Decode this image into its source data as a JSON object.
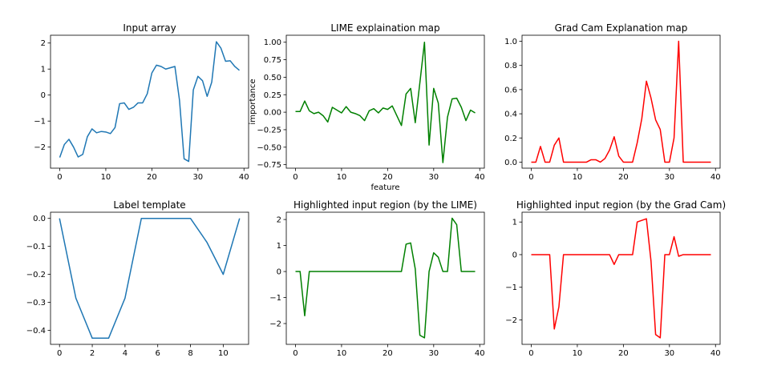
{
  "chart_data": [
    {
      "type": "line",
      "title": "Input array",
      "xlabel": "",
      "ylabel": "",
      "xlim": [
        -2,
        41
      ],
      "ylim": [
        -2.81,
        2.3
      ],
      "xticks": [
        0,
        10,
        20,
        30,
        40
      ],
      "yticks": [
        -2,
        -1,
        0,
        1,
        2
      ],
      "ytick_labels": [
        "−2",
        "−1",
        "0",
        "1",
        "2"
      ],
      "color": "#1f77b4",
      "series": [
        {
          "x": [
            0,
            1,
            2,
            3,
            4,
            5,
            6,
            7,
            8,
            9,
            10,
            11,
            12,
            13,
            14,
            15,
            16,
            17,
            18,
            19,
            20,
            21,
            22,
            23,
            24,
            25,
            26,
            27,
            28,
            29,
            30,
            31,
            32,
            33,
            34,
            35,
            36,
            37,
            38,
            39
          ],
          "values": [
            -2.4,
            -1.9,
            -1.7,
            -2.0,
            -2.38,
            -2.28,
            -1.6,
            -1.3,
            -1.45,
            -1.4,
            -1.42,
            -1.48,
            -1.25,
            -0.33,
            -0.3,
            -0.55,
            -0.47,
            -0.3,
            -0.3,
            0.05,
            0.85,
            1.15,
            1.1,
            1.0,
            1.05,
            1.1,
            -0.2,
            -2.45,
            -2.55,
            0.2,
            0.72,
            0.55,
            -0.05,
            0.5,
            2.05,
            1.8,
            1.3,
            1.32,
            1.1,
            0.95
          ]
        }
      ]
    },
    {
      "type": "line",
      "title": "LIME explaination map",
      "xlabel": "feature",
      "ylabel": "importance",
      "xlim": [
        -2,
        41
      ],
      "ylim": [
        -0.8,
        1.1
      ],
      "xticks": [
        0,
        10,
        20,
        30,
        40
      ],
      "yticks": [
        -0.75,
        -0.5,
        -0.25,
        0.0,
        0.25,
        0.5,
        0.75,
        1.0
      ],
      "ytick_labels": [
        "−0.75",
        "−0.50",
        "−0.25",
        "0.00",
        "0.25",
        "0.50",
        "0.75",
        "1.00"
      ],
      "color": "#008000",
      "series": [
        {
          "x": [
            0,
            1,
            2,
            3,
            4,
            5,
            6,
            7,
            8,
            9,
            10,
            11,
            12,
            13,
            14,
            15,
            16,
            17,
            18,
            19,
            20,
            21,
            22,
            23,
            24,
            25,
            26,
            27,
            28,
            29,
            30,
            31,
            32,
            33,
            34,
            35,
            36,
            37,
            38,
            39
          ],
          "values": [
            0.01,
            0.01,
            0.16,
            0.02,
            -0.02,
            0.0,
            -0.05,
            -0.14,
            0.07,
            0.03,
            -0.01,
            0.08,
            0.0,
            -0.02,
            -0.05,
            -0.12,
            0.02,
            0.05,
            -0.01,
            0.06,
            0.04,
            0.09,
            -0.05,
            -0.19,
            0.26,
            0.34,
            -0.15,
            0.42,
            1.0,
            -0.47,
            0.34,
            0.13,
            -0.72,
            -0.07,
            0.19,
            0.2,
            0.07,
            -0.12,
            0.03,
            -0.01
          ]
        }
      ]
    },
    {
      "type": "line",
      "title": "Grad Cam Explanation map",
      "xlabel": "",
      "ylabel": "",
      "xlim": [
        -2,
        41
      ],
      "ylim": [
        -0.05,
        1.05
      ],
      "xticks": [
        0,
        10,
        20,
        30,
        40
      ],
      "yticks": [
        0.0,
        0.2,
        0.4,
        0.6,
        0.8,
        1.0
      ],
      "ytick_labels": [
        "0.0",
        "0.2",
        "0.4",
        "0.6",
        "0.8",
        "1.0"
      ],
      "color": "#ff0000",
      "series": [
        {
          "x": [
            0,
            1,
            2,
            3,
            4,
            5,
            6,
            7,
            8,
            9,
            10,
            11,
            12,
            13,
            14,
            15,
            16,
            17,
            18,
            19,
            20,
            21,
            22,
            23,
            24,
            25,
            26,
            27,
            28,
            29,
            30,
            31,
            32,
            33,
            34,
            35,
            36,
            37,
            38,
            39
          ],
          "values": [
            0.0,
            0.0,
            0.13,
            0.0,
            0.0,
            0.14,
            0.2,
            0.0,
            0.0,
            0.0,
            0.0,
            0.0,
            0.0,
            0.02,
            0.02,
            0.0,
            0.03,
            0.1,
            0.21,
            0.05,
            0.0,
            0.0,
            0.0,
            0.16,
            0.36,
            0.67,
            0.53,
            0.35,
            0.27,
            0.0,
            0.0,
            0.2,
            1.0,
            0.0,
            0.0,
            0.0,
            0.0,
            0.0,
            0.0,
            0.0
          ]
        }
      ]
    },
    {
      "type": "line",
      "title": "Label template",
      "xlabel": "",
      "ylabel": "",
      "xlim": [
        -0.55,
        11.55
      ],
      "ylim": [
        -0.45,
        0.022
      ],
      "xticks": [
        0,
        2,
        4,
        6,
        8,
        10
      ],
      "yticks": [
        -0.4,
        -0.3,
        -0.2,
        -0.1,
        0.0
      ],
      "ytick_labels": [
        "−0.4",
        "−0.3",
        "−0.2",
        "−0.1",
        "0.0"
      ],
      "color": "#1f77b4",
      "series": [
        {
          "x": [
            0,
            1,
            2,
            3,
            4,
            5,
            6,
            7,
            8,
            9,
            10,
            11
          ],
          "values": [
            0.0,
            -0.285,
            -0.428,
            -0.428,
            -0.285,
            0.0,
            0.0,
            0.0,
            0.0,
            -0.085,
            -0.2,
            0.0
          ]
        }
      ]
    },
    {
      "type": "line",
      "title": "Highlighted input region (by the LIME)",
      "xlabel": "",
      "ylabel": "",
      "xlim": [
        -2,
        41
      ],
      "ylim": [
        -2.8,
        2.28
      ],
      "xticks": [
        0,
        10,
        20,
        30,
        40
      ],
      "yticks": [
        -2,
        -1,
        0,
        1,
        2
      ],
      "ytick_labels": [
        "−2",
        "−1",
        "0",
        "1",
        "2"
      ],
      "color": "#008000",
      "series": [
        {
          "x": [
            0,
            1,
            2,
            3,
            4,
            5,
            6,
            7,
            8,
            9,
            10,
            11,
            12,
            13,
            14,
            15,
            16,
            17,
            18,
            19,
            20,
            21,
            22,
            23,
            24,
            25,
            26,
            27,
            28,
            29,
            30,
            31,
            32,
            33,
            34,
            35,
            36,
            37,
            38,
            39
          ],
          "values": [
            0,
            0,
            -1.7,
            0,
            0,
            0,
            0,
            0,
            0,
            0,
            0,
            0,
            0,
            0,
            0,
            0,
            0,
            0,
            0,
            0,
            0,
            0,
            0,
            0,
            1.05,
            1.1,
            0.1,
            -2.45,
            -2.55,
            0.0,
            0.72,
            0.55,
            0,
            0,
            2.05,
            1.8,
            0,
            0,
            0,
            0
          ]
        }
      ]
    },
    {
      "type": "line",
      "title": "Highlighted input region (by the Grad Cam)",
      "xlabel": "",
      "ylabel": "",
      "xlim": [
        -2,
        41
      ],
      "ylim": [
        -2.75,
        1.3
      ],
      "xticks": [
        0,
        10,
        20,
        30,
        40
      ],
      "yticks": [
        -2,
        -1,
        0,
        1
      ],
      "ytick_labels": [
        "−2",
        "−1",
        "0",
        "1"
      ],
      "color": "#ff0000",
      "series": [
        {
          "x": [
            0,
            1,
            2,
            3,
            4,
            5,
            6,
            7,
            8,
            9,
            10,
            11,
            12,
            13,
            14,
            15,
            16,
            17,
            18,
            19,
            20,
            21,
            22,
            23,
            24,
            25,
            26,
            27,
            28,
            29,
            30,
            31,
            32,
            33,
            34,
            35,
            36,
            37,
            38,
            39
          ],
          "values": [
            0,
            0,
            0,
            0,
            0,
            -2.28,
            -1.6,
            0,
            0,
            0,
            0,
            0,
            0,
            0,
            0,
            0,
            0,
            0,
            -0.3,
            0,
            0,
            0,
            0,
            1.0,
            1.05,
            1.1,
            -0.2,
            -2.45,
            -2.55,
            0,
            0,
            0.55,
            -0.05,
            0,
            0,
            0,
            0,
            0,
            0,
            0
          ]
        }
      ]
    }
  ]
}
